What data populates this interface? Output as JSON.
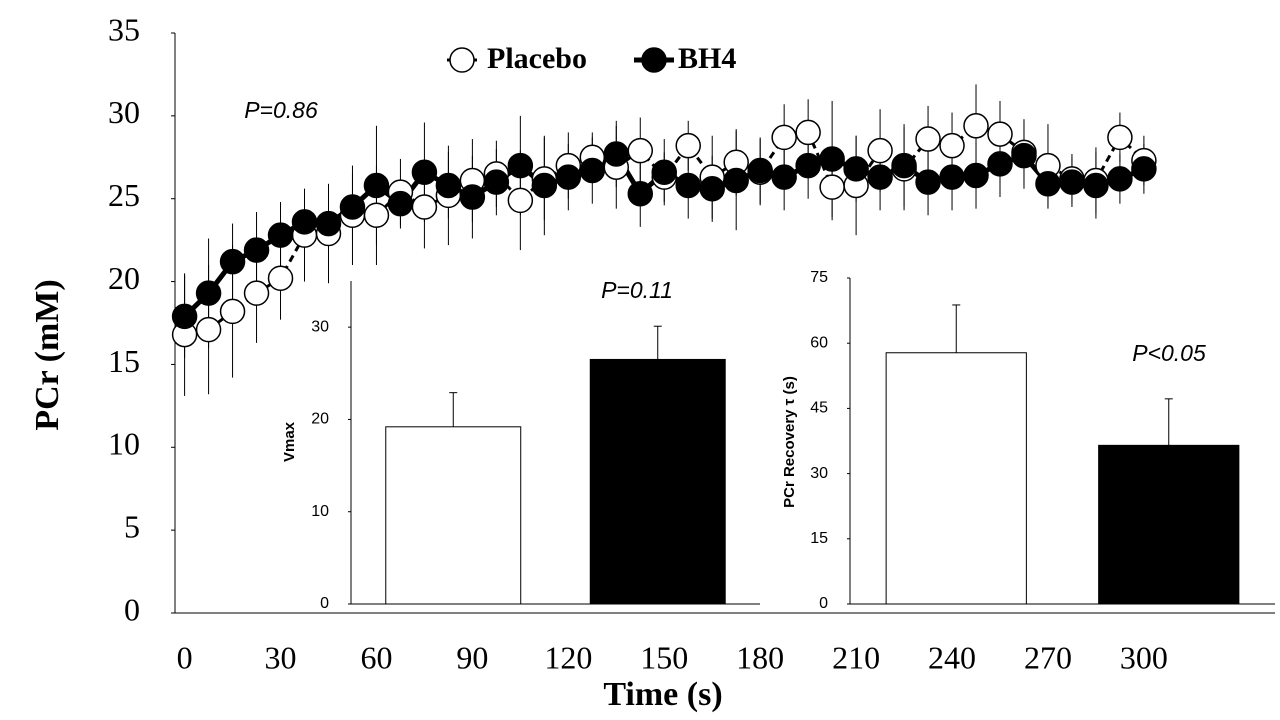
{
  "chart_data": [
    {
      "type": "line",
      "x_label": "Time (s)",
      "y_label": "PCr (mM)",
      "annotation": "P=0.86",
      "legend": "top",
      "x": [
        0,
        7.5,
        15,
        22.5,
        30,
        37.5,
        45,
        52.5,
        60,
        67.5,
        75,
        82.5,
        90,
        97.5,
        105,
        112.5,
        120,
        127.5,
        135,
        142.5,
        150,
        157.5,
        165,
        172.5,
        180,
        187.5,
        195,
        202.5,
        210,
        217.5,
        225,
        232.5,
        240,
        247.5,
        255,
        262.5,
        270,
        277.5,
        285,
        292.5,
        300
      ],
      "xlim": [
        -3,
        341
      ],
      "xticks": [
        0,
        30,
        60,
        90,
        120,
        150,
        180,
        210,
        240,
        270,
        300
      ],
      "ylim": [
        0,
        35
      ],
      "yticks": [
        0,
        5,
        10,
        15,
        20,
        25,
        30,
        35
      ],
      "series": [
        {
          "name": "Placebo",
          "color": "#ffffff",
          "line_style": "dashed",
          "values": [
            16.8,
            17.1,
            18.2,
            19.3,
            20.2,
            22.8,
            22.9,
            24.0,
            24.0,
            25.4,
            24.5,
            25.2,
            26.1,
            26.5,
            24.9,
            26.2,
            27.0,
            27.5,
            26.9,
            27.9,
            26.3,
            28.2,
            26.3,
            27.2,
            26.6,
            28.7,
            29.0,
            25.7,
            25.8,
            27.9,
            26.8,
            28.6,
            28.2,
            29.4,
            28.9,
            27.8,
            27.0,
            26.2,
            26.1,
            28.7,
            27.3
          ],
          "errors": [
            3.7,
            3.9,
            4.0,
            3.0,
            2.5,
            2.8,
            3.0,
            3.0,
            3.0,
            2.0,
            2.5,
            3.0,
            2.5,
            2.0,
            3.0,
            2.5,
            2.0,
            1.5,
            2.5,
            2.0,
            1.5,
            1.5,
            2.5,
            2.0,
            2.0,
            2.0,
            2.0,
            2.0,
            3.0,
            2.5,
            2.5,
            2.0,
            2.0,
            2.5,
            2.0,
            2.0,
            2.5,
            1.5,
            2.0,
            1.5,
            1.5
          ]
        },
        {
          "name": "BH4",
          "color": "#000000",
          "line_style": "solid",
          "values": [
            17.9,
            19.3,
            21.2,
            21.9,
            22.8,
            23.6,
            23.5,
            24.5,
            25.8,
            24.7,
            26.6,
            25.8,
            25.1,
            26.0,
            27.0,
            25.8,
            26.3,
            26.7,
            27.7,
            25.3,
            26.6,
            25.8,
            25.6,
            26.1,
            26.7,
            26.3,
            27.0,
            27.4,
            26.8,
            26.3,
            27.0,
            26.0,
            26.3,
            26.4,
            27.1,
            27.6,
            25.9,
            26.0,
            25.8,
            26.2,
            26.8
          ],
          "errors": [
            2.5,
            3.3,
            2.3,
            2.3,
            2.0,
            2.0,
            2.0,
            2.0,
            3.6,
            1.5,
            3.0,
            2.0,
            2.5,
            2.0,
            3.0,
            3.0,
            2.0,
            2.0,
            2.0,
            2.0,
            2.0,
            2.0,
            2.0,
            3.0,
            2.0,
            2.0,
            2.0,
            3.5,
            2.0,
            2.0,
            2.5,
            2.0,
            2.0,
            2.0,
            2.0,
            2.0,
            1.5,
            1.5,
            2.0,
            1.5,
            1.5
          ]
        }
      ]
    },
    {
      "type": "bar",
      "y_label": "Vmax",
      "annotation": "P=0.11",
      "values": [
        19.2,
        26.5
      ],
      "errors": [
        3.7,
        3.6
      ],
      "colors": [
        "#ffffff",
        "#000000"
      ],
      "ylim": [
        0,
        35
      ],
      "yticks": [
        0,
        10,
        20,
        30
      ]
    },
    {
      "type": "bar",
      "y_label": "PCr Recovery τ (s)",
      "annotation": "P<0.05",
      "values": [
        57.8,
        36.5
      ],
      "errors": [
        11.0,
        10.7
      ],
      "colors": [
        "#ffffff",
        "#000000"
      ],
      "ylim": [
        0,
        75
      ],
      "yticks": [
        0,
        15,
        30,
        45,
        60,
        75
      ]
    }
  ]
}
